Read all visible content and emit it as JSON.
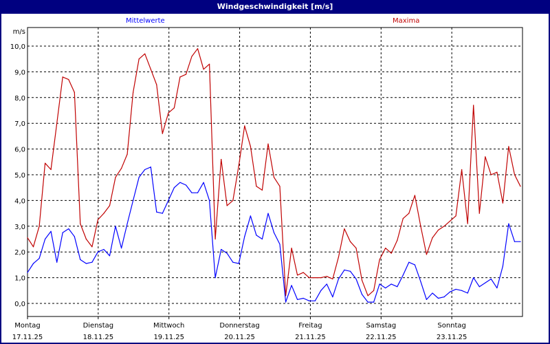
{
  "window": {
    "title": "Windgeschwindigkeit [m/s]"
  },
  "chart_data": {
    "type": "line",
    "title": "Windgeschwindigkeit [m/s]",
    "ylabel": "m/s",
    "ylim": [
      -0.5,
      11.0
    ],
    "yticks": [
      "0,0",
      "1,0",
      "2,0",
      "3,0",
      "4,0",
      "5,0",
      "6,0",
      "7,0",
      "8,0",
      "9,0",
      "10,0"
    ],
    "xticks": [
      {
        "day": "Montag",
        "date": "17.11.25"
      },
      {
        "day": "Dienstag",
        "date": "18.11.25"
      },
      {
        "day": "Mittwoch",
        "date": "19.11.25"
      },
      {
        "day": "Donnerstag",
        "date": "20.11.25"
      },
      {
        "day": "Freitag",
        "date": "21.11.25"
      },
      {
        "day": "Samstag",
        "date": "22.11.25"
      },
      {
        "day": "Sonntag",
        "date": "23.11.25"
      }
    ],
    "grid": true,
    "legend_position": "top",
    "x": [
      "17.11.25 00:00",
      "17.11.25 02:00",
      "17.11.25 04:00",
      "17.11.25 06:00",
      "17.11.25 08:00",
      "17.11.25 10:00",
      "17.11.25 12:00",
      "17.11.25 14:00",
      "17.11.25 16:00",
      "17.11.25 18:00",
      "17.11.25 20:00",
      "17.11.25 22:00",
      "18.11.25 00:00",
      "18.11.25 02:00",
      "18.11.25 04:00",
      "18.11.25 06:00",
      "18.11.25 08:00",
      "18.11.25 10:00",
      "18.11.25 12:00",
      "18.11.25 14:00",
      "18.11.25 16:00",
      "18.11.25 18:00",
      "18.11.25 20:00",
      "18.11.25 22:00",
      "19.11.25 00:00",
      "19.11.25 02:00",
      "19.11.25 04:00",
      "19.11.25 06:00",
      "19.11.25 08:00",
      "19.11.25 10:00",
      "19.11.25 12:00",
      "19.11.25 14:00",
      "19.11.25 16:00",
      "19.11.25 18:00",
      "19.11.25 20:00",
      "19.11.25 22:00",
      "20.11.25 00:00",
      "20.11.25 02:00",
      "20.11.25 04:00",
      "20.11.25 06:00",
      "20.11.25 08:00",
      "20.11.25 10:00",
      "20.11.25 12:00",
      "20.11.25 14:00",
      "20.11.25 16:00",
      "20.11.25 18:00",
      "20.11.25 20:00",
      "20.11.25 22:00",
      "21.11.25 00:00",
      "21.11.25 02:00",
      "21.11.25 04:00",
      "21.11.25 06:00",
      "21.11.25 08:00",
      "21.11.25 10:00",
      "21.11.25 12:00",
      "21.11.25 14:00",
      "21.11.25 16:00",
      "21.11.25 18:00",
      "21.11.25 20:00",
      "21.11.25 22:00",
      "22.11.25 00:00",
      "22.11.25 02:00",
      "22.11.25 04:00",
      "22.11.25 06:00",
      "22.11.25 08:00",
      "22.11.25 10:00",
      "22.11.25 12:00",
      "22.11.25 14:00",
      "22.11.25 16:00",
      "22.11.25 18:00",
      "22.11.25 20:00",
      "22.11.25 22:00",
      "23.11.25 00:00",
      "23.11.25 02:00",
      "23.11.25 04:00",
      "23.11.25 06:00",
      "23.11.25 08:00",
      "23.11.25 10:00",
      "23.11.25 12:00",
      "23.11.25 14:00",
      "23.11.25 16:00",
      "23.11.25 18:00",
      "23.11.25 20:00",
      "23.11.25 22:00",
      "24.11.25 00:00"
    ],
    "series": [
      {
        "name": "Mittelwerte",
        "color": "#0000ff",
        "values": [
          1.2,
          1.55,
          1.75,
          2.5,
          2.8,
          1.6,
          2.75,
          2.9,
          2.6,
          1.7,
          1.55,
          1.6,
          2.0,
          2.1,
          1.85,
          3.0,
          2.15,
          3.1,
          4.0,
          4.9,
          5.2,
          5.3,
          3.55,
          3.5,
          4.0,
          4.5,
          4.7,
          4.6,
          4.3,
          4.3,
          4.7,
          4.0,
          1.0,
          2.1,
          1.95,
          1.6,
          1.55,
          2.6,
          3.4,
          2.65,
          2.5,
          3.5,
          2.75,
          2.3,
          0.05,
          0.7,
          0.15,
          0.2,
          0.1,
          0.1,
          0.5,
          0.75,
          0.25,
          0.95,
          1.3,
          1.25,
          0.95,
          0.35,
          0.05,
          0.05,
          0.75,
          0.6,
          0.75,
          0.65,
          1.1,
          1.6,
          1.5,
          0.85,
          0.15,
          0.4,
          0.2,
          0.25,
          0.45,
          0.55,
          0.5,
          0.4,
          1.0,
          0.65,
          0.8,
          0.95,
          0.6,
          1.45,
          3.1,
          2.4,
          2.4
        ]
      },
      {
        "name": "Maxima",
        "color": "#c00000",
        "values": [
          2.55,
          2.2,
          3.0,
          5.45,
          5.2,
          7.0,
          8.8,
          8.7,
          8.2,
          3.1,
          2.5,
          2.2,
          3.25,
          3.5,
          3.8,
          4.9,
          5.25,
          5.8,
          8.2,
          9.5,
          9.7,
          9.1,
          8.5,
          6.6,
          7.4,
          7.6,
          8.8,
          8.9,
          9.6,
          9.9,
          9.1,
          9.3,
          2.5,
          5.6,
          3.8,
          4.0,
          5.35,
          6.9,
          6.1,
          4.55,
          4.4,
          6.2,
          4.9,
          4.55,
          0.3,
          2.15,
          1.1,
          1.2,
          1.0,
          1.0,
          1.0,
          1.05,
          0.95,
          1.8,
          2.9,
          2.4,
          2.15,
          0.9,
          0.3,
          0.5,
          1.7,
          2.15,
          1.95,
          2.45,
          3.3,
          3.5,
          4.2,
          3.0,
          1.9,
          2.55,
          2.85,
          3.0,
          3.2,
          3.4,
          5.2,
          3.1,
          7.7,
          3.5,
          5.7,
          5.0,
          5.1,
          3.9,
          6.1,
          5.0,
          4.55
        ]
      }
    ]
  }
}
